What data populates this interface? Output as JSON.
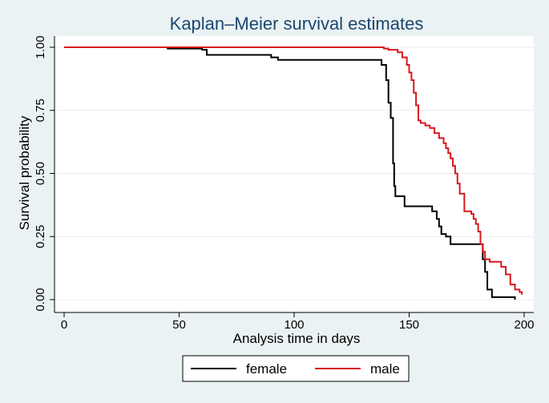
{
  "chart_data": {
    "type": "line",
    "step": true,
    "title": "Kaplan–Meier survival estimates",
    "xlabel": "Analysis time in days",
    "ylabel": "Survival probability",
    "xlim": [
      0,
      200
    ],
    "ylim": [
      0,
      1
    ],
    "xticks": [
      0,
      50,
      100,
      150,
      200
    ],
    "yticks": [
      0.0,
      0.25,
      0.5,
      0.75,
      1.0
    ],
    "ytick_labels": [
      "0.00",
      "0.25",
      "0.50",
      "0.75",
      "1.00"
    ],
    "grid": true,
    "legend_position": "bottom",
    "series": [
      {
        "name": "female",
        "color": "#000000",
        "x": [
          0,
          45,
          60,
          62,
          90,
          93,
          138,
          140,
          141,
          142,
          143,
          143.5,
          144,
          148,
          160,
          162,
          163,
          164,
          166,
          168,
          172,
          180,
          182,
          183,
          184,
          186,
          196
        ],
        "y": [
          1.0,
          0.995,
          0.99,
          0.97,
          0.96,
          0.95,
          0.93,
          0.87,
          0.78,
          0.72,
          0.54,
          0.45,
          0.41,
          0.37,
          0.35,
          0.32,
          0.29,
          0.26,
          0.25,
          0.22,
          0.22,
          0.22,
          0.16,
          0.11,
          0.04,
          0.01,
          0.0
        ]
      },
      {
        "name": "male",
        "color": "#d7191c",
        "x": [
          0,
          139,
          141,
          145,
          147,
          149,
          150,
          151,
          152,
          153,
          154,
          155,
          157,
          159,
          161,
          163,
          165,
          166,
          167,
          168,
          169,
          170,
          171,
          172,
          174,
          177,
          178,
          179,
          180,
          181,
          182,
          183,
          185,
          188,
          190,
          192,
          194,
          196,
          198,
          199
        ],
        "y": [
          1.0,
          0.995,
          0.99,
          0.98,
          0.96,
          0.93,
          0.9,
          0.87,
          0.82,
          0.77,
          0.71,
          0.7,
          0.69,
          0.68,
          0.66,
          0.64,
          0.62,
          0.6,
          0.58,
          0.56,
          0.53,
          0.5,
          0.46,
          0.42,
          0.35,
          0.34,
          0.32,
          0.3,
          0.27,
          0.22,
          0.19,
          0.16,
          0.15,
          0.15,
          0.13,
          0.1,
          0.06,
          0.04,
          0.03,
          0.02
        ]
      }
    ]
  }
}
